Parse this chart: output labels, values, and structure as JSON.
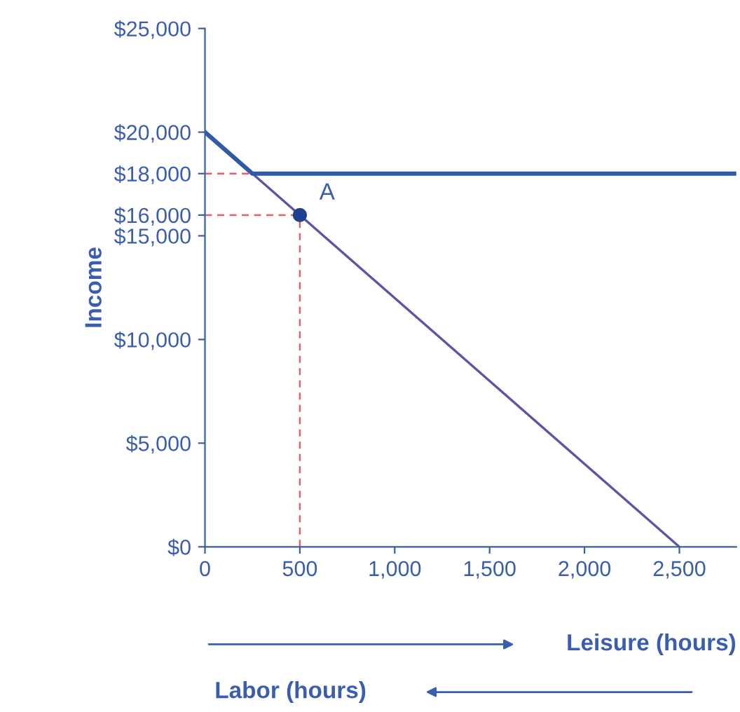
{
  "chart_data": {
    "type": "line",
    "xlabel": "Leisure (hours)",
    "ylabel": "Income",
    "annotations": [
      {
        "text": "A",
        "x": 500,
        "y": 16000
      },
      "Labor (hours)"
    ],
    "series": [
      {
        "color": "#5b55a6",
        "x": [
          0,
          2500
        ],
        "values": [
          20000,
          0
        ],
        "line_style": "solid"
      },
      {
        "color": "#2f5aa8",
        "x": [
          0,
          250,
          2800
        ],
        "values": [
          20000,
          18000,
          18000
        ],
        "line_style": "solid"
      },
      {
        "color": "#e06070",
        "x": [
          0,
          250
        ],
        "values": [
          18000,
          18000
        ],
        "line_style": "dashed"
      },
      {
        "color": "#e06070",
        "x": [
          0,
          500
        ],
        "values": [
          16000,
          16000
        ],
        "line_style": "dashed"
      },
      {
        "color": "#e06070",
        "x": [
          500,
          500
        ],
        "values": [
          0,
          16000
        ],
        "line_style": "dashed"
      },
      {
        "type": "scatter",
        "color": "#1f3f8f",
        "x": [
          500
        ],
        "values": [
          16000
        ],
        "marker": "circle"
      }
    ],
    "xlim": [
      0,
      2800
    ],
    "ylim": [
      0,
      25000
    ],
    "xticks": [
      0,
      500,
      {
        "value": 1000,
        "label": "1,000"
      },
      {
        "value": 1500,
        "label": "1,500"
      },
      {
        "value": 2000,
        "label": "2,000"
      },
      {
        "value": 2500,
        "label": "2,500"
      }
    ],
    "yticks": [
      {
        "value": 0,
        "label": "$0"
      },
      {
        "value": 5000,
        "label": "$5,000"
      },
      {
        "value": 10000,
        "label": "$10,000"
      },
      {
        "value": 15000,
        "label": "$15,000"
      },
      {
        "value": 16000,
        "label": "$16,000"
      },
      {
        "value": 18000,
        "label": "$18,000"
      },
      {
        "value": 20000,
        "label": "$20,000"
      },
      {
        "value": 25000,
        "label": "$25,000"
      }
    ],
    "grid": false,
    "legend": false
  }
}
